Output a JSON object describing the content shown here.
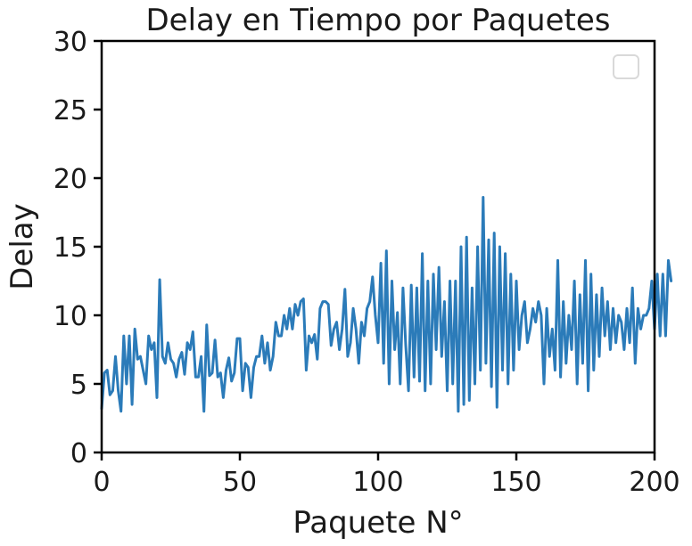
{
  "chart_data": {
    "type": "line",
    "title": "Delay en Tiempo por Paquetes",
    "xlabel": "Paquete N°",
    "ylabel": "Delay",
    "xlim": [
      0,
      200
    ],
    "ylim": [
      0,
      30
    ],
    "x_ticks": [
      0,
      50,
      100,
      150,
      200
    ],
    "y_ticks": [
      0,
      5,
      10,
      15,
      20,
      25,
      30
    ],
    "grid": false,
    "legend": {
      "placement": "top-right",
      "entries": []
    },
    "series": [
      {
        "color": "#2b7bb9",
        "values": [
          3.2,
          5.8,
          6.0,
          4.2,
          4.5,
          7.0,
          4.5,
          3.0,
          8.5,
          5.0,
          8.5,
          3.5,
          9.0,
          6.8,
          7.0,
          6.0,
          5.0,
          8.5,
          7.5,
          8.0,
          4.0,
          12.6,
          7.0,
          6.5,
          8.0,
          6.8,
          6.5,
          5.5,
          6.8,
          7.3,
          5.7,
          8.0,
          7.5,
          8.8,
          5.5,
          5.5,
          7.0,
          3.0,
          9.3,
          5.6,
          5.8,
          8.2,
          5.5,
          5.8,
          4.0,
          6.0,
          6.9,
          5.2,
          5.8,
          8.3,
          8.3,
          4.5,
          6.5,
          6.2,
          4.0,
          6.2,
          7.0,
          7.0,
          8.5,
          6.5,
          8.0,
          6.0,
          7.0,
          9.5,
          8.5,
          8.5,
          10.0,
          9.0,
          10.5,
          9.0,
          10.8,
          10.0,
          11.0,
          11.2,
          6.0,
          8.5,
          8.0,
          8.6,
          6.8,
          10.5,
          11.0,
          11.0,
          10.8,
          7.8,
          9.0,
          9.5,
          7.5,
          9.0,
          11.9,
          7.0,
          8.0,
          10.5,
          9.0,
          6.5,
          9.5,
          8.5,
          10.5,
          11.0,
          12.8,
          10.0,
          8.0,
          13.8,
          6.5,
          14.7,
          5.0,
          12.5,
          7.5,
          10.2,
          5.0,
          12.0,
          7.8,
          4.5,
          12.2,
          5.5,
          12.0,
          5.2,
          14.5,
          4.5,
          12.5,
          5.0,
          13.0,
          7.5,
          13.5,
          7.0,
          11.0,
          4.5,
          12.5,
          5.0,
          12.5,
          3.0,
          15.0,
          3.5,
          15.7,
          3.8,
          12.0,
          5.0,
          15.0,
          6.0,
          18.6,
          6.5,
          15.5,
          4.8,
          16.0,
          3.3,
          15.0,
          6.0,
          14.5,
          5.0,
          13.0,
          6.0,
          12.5,
          7.5,
          10.0,
          11.0,
          8.0,
          9.0,
          10.5,
          9.5,
          11.0,
          10.0,
          5.0,
          10.5,
          7.0,
          9.0,
          6.0,
          14.0,
          5.5,
          11.0,
          6.5,
          10.0,
          7.5,
          12.5,
          5.0,
          11.5,
          6.5,
          14.0,
          4.5,
          13.0,
          6.0,
          11.5,
          7.0,
          12.0,
          8.5,
          11.0,
          7.5,
          10.5,
          8.0,
          10.0,
          9.5,
          7.5,
          10.5,
          8.0,
          12.0,
          6.5,
          10.5,
          9.0,
          10.0,
          10.0,
          10.5,
          12.5,
          9.0,
          13.0,
          8.5,
          13.0,
          8.5,
          14.0,
          12.5
        ]
      }
    ]
  }
}
